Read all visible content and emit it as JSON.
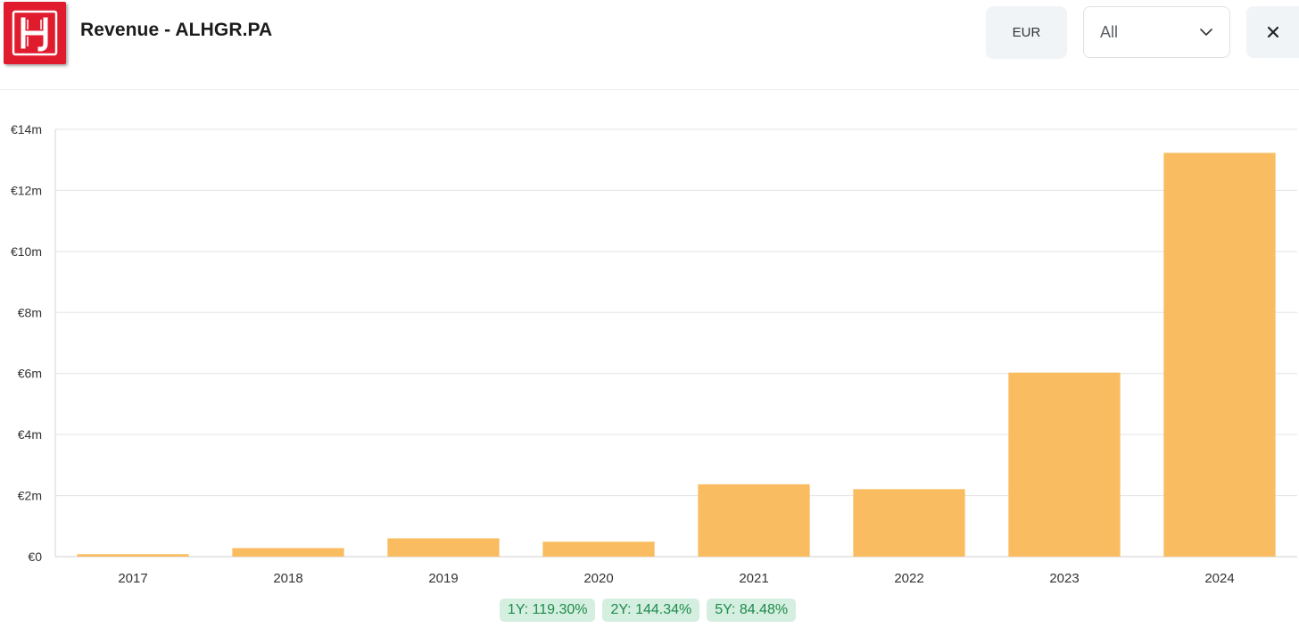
{
  "header": {
    "title": "Revenue - ALHGR.PA",
    "currency_label": "EUR",
    "range_value": "All",
    "logo_text": "H"
  },
  "colors": {
    "bar": "#f9bc60",
    "grid": "#e3e3e3",
    "badge_bg": "#d4efdf",
    "badge_text": "#1e8a4c",
    "logo": "#e11b2e"
  },
  "icons": {
    "dropdown": "chevron-down-icon",
    "close": "close-icon"
  },
  "chart_data": {
    "type": "bar",
    "title": "",
    "xlabel": "",
    "ylabel": "",
    "categories": [
      "2017",
      "2018",
      "2019",
      "2020",
      "2021",
      "2022",
      "2023",
      "2024"
    ],
    "values": [
      0.08,
      0.28,
      0.6,
      0.49,
      2.37,
      2.21,
      6.03,
      13.23
    ],
    "unit": "€ millions",
    "ylim": [
      0,
      14
    ],
    "yticks": [
      0,
      2,
      4,
      6,
      8,
      10,
      12,
      14
    ],
    "ytick_labels": [
      "€0",
      "€2m",
      "€4m",
      "€6m",
      "€8m",
      "€10m",
      "€12m",
      "€14m"
    ],
    "grid": true,
    "legend": "none"
  },
  "growth_badges": [
    {
      "label": "1Y: 119.30%"
    },
    {
      "label": "2Y: 144.34%"
    },
    {
      "label": "5Y: 84.48%"
    }
  ]
}
